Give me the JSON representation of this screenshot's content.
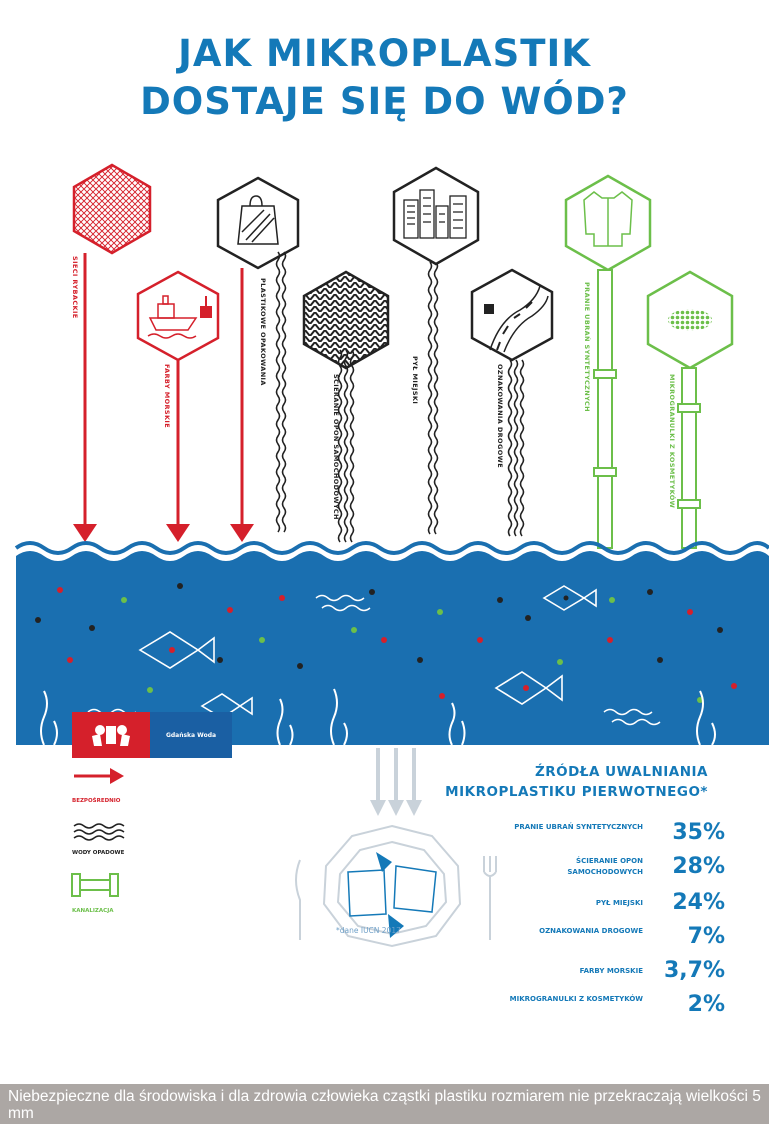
{
  "title": {
    "line1": "JAK MIKROPLASTIK",
    "line2": "DOSTAJE SIĘ DO WÓD?"
  },
  "colors": {
    "blue": "#1479b8",
    "water": "#1a6fb0",
    "red": "#d5202b",
    "green": "#6cbf4a",
    "dark": "#222222",
    "caption_bg": "#aca7a4"
  },
  "pollution_sources": [
    {
      "label": "SIECI RYBACKIE",
      "icon": "fishing-net-icon",
      "pathway": "bezpośrednio"
    },
    {
      "label": "FARBY MORSKIE",
      "icon": "ship-paint-icon",
      "pathway": "bezpośrednio"
    },
    {
      "label": "PLASTIKOWE OPAKOWANIA",
      "icon": "plastic-bag-icon",
      "pathway": "bezpośrednio"
    },
    {
      "label": "ŚCIERANIE OPON SAMOCHODOWYCH",
      "icon": "tire-tread-icon",
      "pathway": "wody opadowe"
    },
    {
      "label": "PYŁ MIEJSKI",
      "icon": "city-buildings-icon",
      "pathway": "wody opadowe"
    },
    {
      "label": "OZNAKOWANIA DROGOWE",
      "icon": "road-marking-icon",
      "pathway": "wody opadowe"
    },
    {
      "label": "PRANIE UBRAŃ SYNTETYCZNYCH",
      "icon": "shirt-icon",
      "pathway": "kanalizacja"
    },
    {
      "label": "MIKROGRANULKI Z KOSMETYKÓW",
      "icon": "microbeads-icon",
      "pathway": "kanalizacja"
    }
  ],
  "legend": [
    {
      "label": "BEZPOŚREDNIO",
      "icon": "red-arrow-icon"
    },
    {
      "label": "WODY OPADOWE",
      "icon": "wavy-lines-icon"
    },
    {
      "label": "KANALIZACJA",
      "icon": "pipe-icon"
    }
  ],
  "sources_panel": {
    "title_line1": "ŹRÓDŁA UWALNIANIA",
    "title_line2": "MIKROPLASTIKU PIERWOTNEGO*",
    "items": [
      {
        "label": "PRANIE UBRAŃ SYNTETYCZNYCH",
        "value": "35%"
      },
      {
        "label": "ŚCIERANIE OPON SAMOCHODOWYCH",
        "value": "28%"
      },
      {
        "label": "PYŁ MIEJSKI",
        "value": "24%"
      },
      {
        "label": "OZNAKOWANIA DROGOWE",
        "value": "7%"
      },
      {
        "label": "FARBY MORSKIE",
        "value": "3,7%"
      },
      {
        "label": "MIKROGRANULKI Z KOSMETYKÓW",
        "value": "2%"
      }
    ]
  },
  "footnote": "*dane IUCN 2017",
  "logo_text": "Gdańska Woda",
  "caption": "Niebezpieczne dla środowiska i dla zdrowia człowieka cząstki plastiku rozmiarem nie przekraczają wielkości 5 mm"
}
